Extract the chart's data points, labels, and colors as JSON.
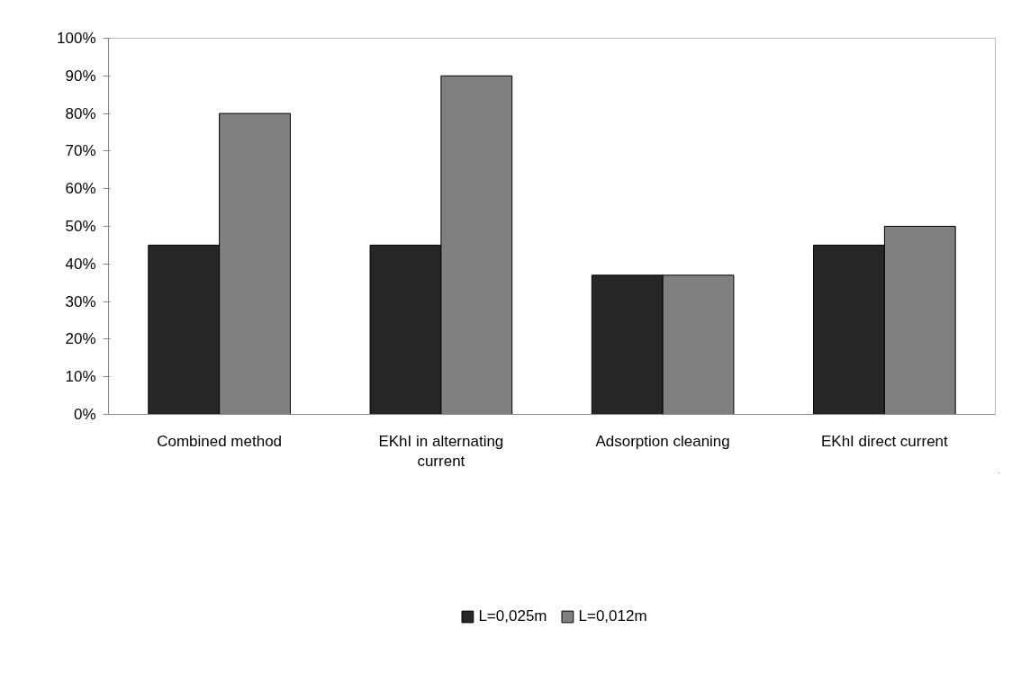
{
  "chart_data": {
    "type": "bar",
    "categories": [
      "Combined method",
      "EKhI in alternating current",
      "Adsorption cleaning",
      "EKhI direct current"
    ],
    "series": [
      {
        "name": "L=0,025m",
        "color": "#262626",
        "values": [
          45,
          45,
          37,
          45
        ]
      },
      {
        "name": "L=0,012m",
        "color": "#808080",
        "values": [
          80,
          90,
          37,
          50
        ]
      }
    ],
    "ylim": [
      0,
      100
    ],
    "yticks": [
      {
        "value": 0,
        "label": "0%"
      },
      {
        "value": 10,
        "label": "10%"
      },
      {
        "value": 20,
        "label": "20%"
      },
      {
        "value": 30,
        "label": "30%"
      },
      {
        "value": 40,
        "label": "40%"
      },
      {
        "value": 50,
        "label": "50%"
      },
      {
        "value": 60,
        "label": "60%"
      },
      {
        "value": 70,
        "label": "70%"
      },
      {
        "value": 80,
        "label": "80%"
      },
      {
        "value": 90,
        "label": "90%"
      },
      {
        "value": 100,
        "label": "100%"
      }
    ],
    "grid": false,
    "legend": "bottom"
  }
}
